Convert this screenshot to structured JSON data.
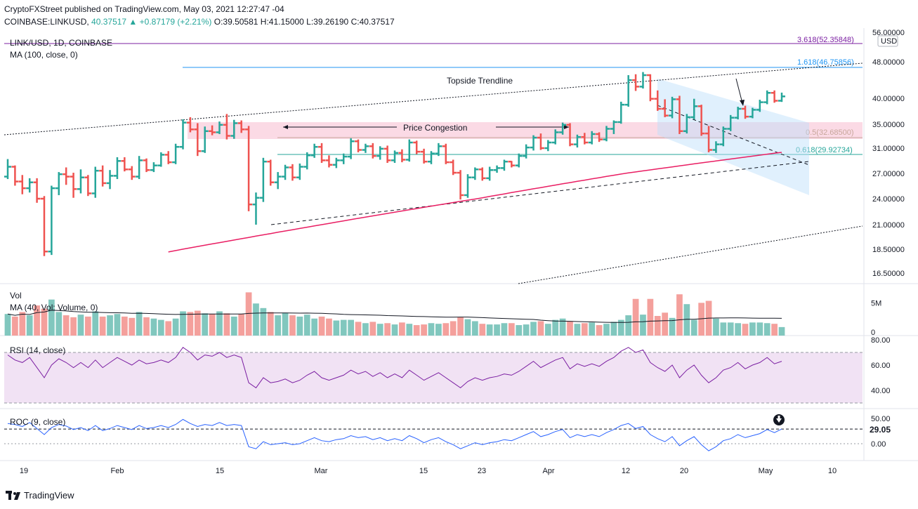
{
  "header": {
    "line1": "CryptoFXStreet published on TradingView.com, May 03, 2021 12:27:47 -04",
    "symbol": "COINBASE:LINKUSD,",
    "change": "40.37517 ▲ +0.87179 (+2.21%)",
    "ohlc": "O:39.50581 H:41.15000 L:39.26190 C:40.37517"
  },
  "pane_labels": {
    "pair": "LINK/USD, 1D, COINBASE",
    "ma": "MA (100, close, 0)",
    "vol": "Vol",
    "vol_ma": "MA (40, Vol: Volume, 0)",
    "rsi": "RSI (14, close)",
    "roc": "ROC (9, close)",
    "currency": "USD"
  },
  "brand": "TradingView",
  "colors": {
    "up": "#26a69a",
    "down": "#ef5350",
    "ma": "#e91e63",
    "rsi": "#7b1fa2",
    "roc": "#2962ff",
    "fib_top": "#7b1fa2",
    "fib_blue": "#2196f3"
  },
  "chart_data": {
    "type": "candlestick",
    "price_axis_ticks": [
      "56.00000",
      "48.00000",
      "40.00000",
      "35.00000",
      "31.00000",
      "27.00000",
      "24.00000",
      "21.00000",
      "18.50000",
      "16.50000"
    ],
    "x_ticks": [
      "19",
      "Feb",
      "15",
      "Mar",
      "15",
      "23",
      "Apr",
      "12",
      "20",
      "May",
      "10"
    ],
    "annotations": {
      "topside": "Topside Trendline",
      "congestion": "Price Congestion",
      "fib_3618": "3.618(52.35848)",
      "fib_1618": "1.618(46.75856)",
      "fib_05": "0.5(32.68500)",
      "fib_0618": "0.618(29.92734)"
    },
    "volume_axis": [
      "5M",
      "0"
    ],
    "rsi_axis": [
      "80.00",
      "60.00",
      "40.00"
    ],
    "roc_axis": [
      "50.00",
      "0.00"
    ],
    "roc_last": "29.05",
    "candles": [
      [
        26.6,
        29.2,
        26.3,
        28.0
      ],
      [
        28.0,
        28.2,
        25.5,
        26.0
      ],
      [
        26.0,
        26.8,
        24.5,
        25.2
      ],
      [
        25.2,
        26.4,
        24.7,
        25.9
      ],
      [
        25.9,
        26.4,
        23.5,
        24.0
      ],
      [
        24.0,
        24.3,
        17.9,
        18.3
      ],
      [
        18.3,
        25.5,
        18.0,
        25.2
      ],
      [
        25.2,
        27.2,
        24.4,
        26.9
      ],
      [
        26.9,
        27.9,
        25.6,
        26.6
      ],
      [
        26.6,
        27.1,
        24.1,
        25.1
      ],
      [
        25.1,
        27.6,
        24.6,
        26.5
      ],
      [
        26.5,
        26.8,
        24.3,
        24.6
      ],
      [
        24.6,
        28.0,
        24.1,
        27.4
      ],
      [
        27.4,
        28.2,
        25.4,
        25.8
      ],
      [
        25.8,
        27.5,
        25.1,
        26.7
      ],
      [
        26.7,
        29.5,
        26.3,
        28.9
      ],
      [
        28.9,
        29.5,
        27.3,
        27.6
      ],
      [
        27.6,
        28.1,
        26.2,
        26.6
      ],
      [
        26.6,
        29.7,
        26.3,
        29.0
      ],
      [
        29.0,
        29.3,
        27.2,
        27.5
      ],
      [
        27.5,
        28.7,
        27.2,
        28.2
      ],
      [
        28.2,
        30.3,
        28.0,
        29.9
      ],
      [
        29.9,
        30.5,
        28.4,
        28.7
      ],
      [
        28.7,
        31.7,
        28.4,
        31.2
      ],
      [
        31.2,
        35.9,
        30.8,
        35.3
      ],
      [
        35.3,
        36.3,
        33.6,
        34.1
      ],
      [
        34.1,
        35.2,
        29.7,
        30.5
      ],
      [
        30.5,
        34.6,
        30.2,
        33.8
      ],
      [
        33.8,
        34.8,
        33.1,
        33.6
      ],
      [
        33.6,
        35.5,
        33.3,
        34.9
      ],
      [
        34.9,
        36.9,
        32.4,
        33.0
      ],
      [
        33.0,
        35.8,
        32.5,
        35.2
      ],
      [
        35.2,
        35.7,
        33.5,
        34.1
      ],
      [
        34.1,
        34.7,
        22.5,
        23.3
      ],
      [
        23.3,
        24.7,
        21.0,
        24.1
      ],
      [
        24.1,
        29.4,
        23.6,
        28.8
      ],
      [
        28.8,
        29.1,
        25.5,
        25.9
      ],
      [
        25.9,
        27.2,
        25.1,
        26.6
      ],
      [
        26.6,
        28.3,
        26.2,
        27.9
      ],
      [
        27.9,
        28.4,
        26.1,
        26.5
      ],
      [
        26.5,
        28.5,
        26.2,
        28.0
      ],
      [
        28.0,
        30.3,
        27.6,
        29.8
      ],
      [
        29.8,
        31.7,
        29.4,
        31.2
      ],
      [
        31.2,
        31.8,
        28.6,
        29.0
      ],
      [
        29.0,
        29.8,
        27.9,
        28.3
      ],
      [
        28.3,
        29.4,
        27.8,
        29.0
      ],
      [
        29.0,
        30.1,
        28.4,
        29.6
      ],
      [
        29.6,
        32.6,
        29.2,
        32.1
      ],
      [
        32.1,
        32.4,
        30.3,
        30.7
      ],
      [
        30.7,
        31.7,
        30.2,
        31.3
      ],
      [
        31.3,
        31.8,
        29.3,
        29.7
      ],
      [
        29.7,
        31.3,
        29.1,
        30.9
      ],
      [
        30.9,
        31.4,
        28.6,
        29.0
      ],
      [
        29.0,
        30.6,
        28.6,
        30.2
      ],
      [
        30.2,
        30.8,
        28.7,
        29.1
      ],
      [
        29.1,
        32.4,
        28.8,
        31.9
      ],
      [
        31.9,
        32.2,
        30.0,
        30.4
      ],
      [
        30.4,
        30.9,
        28.5,
        28.8
      ],
      [
        28.8,
        30.5,
        28.4,
        30.1
      ],
      [
        30.1,
        31.8,
        29.7,
        31.3
      ],
      [
        31.3,
        31.7,
        28.4,
        28.7
      ],
      [
        28.7,
        29.1,
        26.8,
        27.1
      ],
      [
        27.1,
        27.5,
        23.9,
        24.4
      ],
      [
        24.4,
        26.9,
        24.1,
        26.5
      ],
      [
        26.5,
        27.9,
        26.2,
        27.6
      ],
      [
        27.6,
        27.9,
        26.1,
        26.4
      ],
      [
        26.4,
        28.0,
        26.1,
        27.5
      ],
      [
        27.5,
        28.2,
        27.1,
        27.8
      ],
      [
        27.8,
        29.1,
        27.4,
        28.8
      ],
      [
        28.8,
        28.9,
        27.9,
        28.2
      ],
      [
        28.2,
        30.1,
        27.9,
        29.7
      ],
      [
        29.7,
        31.6,
        29.3,
        31.1
      ],
      [
        31.1,
        33.1,
        30.6,
        32.7
      ],
      [
        32.7,
        33.4,
        30.7,
        31.0
      ],
      [
        31.0,
        32.3,
        30.5,
        31.9
      ],
      [
        31.9,
        34.1,
        31.6,
        33.6
      ],
      [
        33.6,
        35.3,
        33.2,
        34.9
      ],
      [
        34.9,
        35.2,
        31.3,
        31.6
      ],
      [
        31.6,
        33.2,
        31.1,
        32.8
      ],
      [
        32.8,
        33.5,
        31.6,
        31.9
      ],
      [
        31.9,
        33.8,
        31.6,
        33.3
      ],
      [
        33.3,
        33.6,
        32.0,
        32.4
      ],
      [
        32.4,
        34.7,
        32.1,
        34.2
      ],
      [
        34.2,
        35.7,
        33.3,
        35.4
      ],
      [
        35.4,
        39.3,
        35.1,
        38.7
      ],
      [
        38.7,
        44.9,
        38.3,
        43.8
      ],
      [
        43.8,
        45.1,
        41.5,
        42.4
      ],
      [
        42.4,
        45.6,
        42.0,
        44.9
      ],
      [
        44.9,
        45.1,
        39.4,
        39.9
      ],
      [
        39.9,
        41.6,
        37.5,
        37.9
      ],
      [
        37.9,
        39.8,
        36.3,
        36.6
      ],
      [
        36.6,
        40.3,
        36.1,
        39.8
      ],
      [
        39.8,
        40.5,
        33.3,
        33.8
      ],
      [
        33.8,
        36.9,
        33.4,
        36.3
      ],
      [
        36.3,
        39.9,
        35.9,
        38.4
      ],
      [
        38.4,
        38.7,
        33.0,
        33.4
      ],
      [
        33.4,
        34.7,
        30.3,
        30.7
      ],
      [
        30.7,
        32.1,
        30.2,
        31.6
      ],
      [
        31.6,
        34.6,
        31.3,
        34.2
      ],
      [
        34.2,
        36.7,
        33.8,
        36.2
      ],
      [
        36.2,
        38.3,
        35.9,
        37.9
      ],
      [
        37.9,
        38.5,
        36.0,
        36.4
      ],
      [
        36.4,
        38.1,
        36.1,
        37.7
      ],
      [
        37.7,
        39.7,
        37.3,
        39.2
      ],
      [
        39.2,
        41.6,
        38.8,
        41.1
      ],
      [
        41.1,
        41.6,
        39.1,
        39.5
      ],
      [
        39.5,
        41.15,
        39.26,
        40.38
      ]
    ],
    "volume": [
      3.3,
      2.9,
      3.6,
      3.1,
      4.6,
      4.1,
      5.5,
      3.6,
      3.1,
      2.8,
      3.2,
      2.9,
      3.7,
      2.9,
      3.1,
      3.3,
      2.9,
      2.7,
      3.6,
      2.8,
      2.6,
      2.4,
      2.2,
      2.6,
      3.7,
      3.6,
      3.8,
      3.4,
      3.3,
      3.7,
      3.4,
      2.9,
      3.3,
      6.6,
      4.9,
      4.2,
      3.6,
      3.1,
      3.5,
      3.1,
      2.9,
      3.2,
      2.6,
      2.9,
      2.6,
      2.3,
      2.4,
      2.4,
      2.1,
      1.9,
      2.1,
      1.8,
      1.9,
      1.7,
      2.0,
      1.8,
      1.6,
      1.7,
      1.9,
      1.8,
      1.9,
      2.2,
      2.8,
      2.5,
      2.2,
      1.8,
      1.7,
      1.7,
      1.9,
      1.9,
      1.6,
      1.7,
      2.1,
      2.2,
      1.8,
      2.4,
      2.6,
      2.2,
      1.8,
      1.9,
      2.0,
      1.6,
      1.8,
      2.1,
      2.4,
      3.1,
      5.6,
      3.2,
      5.6,
      3.0,
      3.5,
      2.7,
      6.3,
      4.8,
      2.4,
      5.0,
      5.3,
      2.6,
      2.0,
      2.0,
      1.9,
      1.8,
      2.0,
      2.0,
      1.9,
      1.8,
      1.3
    ],
    "rsi": [
      68,
      64,
      62,
      66,
      58,
      50,
      60,
      65,
      62,
      58,
      62,
      58,
      64,
      58,
      62,
      66,
      63,
      60,
      64,
      61,
      62,
      64,
      62,
      66,
      74,
      70,
      64,
      68,
      67,
      70,
      66,
      68,
      66,
      46,
      42,
      50,
      46,
      47,
      49,
      46,
      48,
      52,
      55,
      50,
      48,
      50,
      52,
      56,
      53,
      55,
      51,
      54,
      50,
      53,
      50,
      56,
      52,
      48,
      51,
      54,
      50,
      46,
      42,
      47,
      50,
      48,
      50,
      51,
      53,
      52,
      55,
      59,
      63,
      58,
      61,
      64,
      66,
      57,
      61,
      59,
      61,
      59,
      63,
      66,
      71,
      74,
      70,
      72,
      62,
      58,
      55,
      60,
      50,
      56,
      60,
      52,
      46,
      50,
      56,
      58,
      62,
      57,
      60,
      62,
      66,
      61,
      63
    ],
    "roc": [
      40,
      38,
      34,
      42,
      30,
      18,
      32,
      38,
      35,
      28,
      32,
      26,
      36,
      26,
      30,
      36,
      32,
      28,
      36,
      30,
      32,
      36,
      32,
      38,
      48,
      40,
      34,
      38,
      36,
      42,
      36,
      38,
      36,
      -6,
      -10,
      4,
      -2,
      0,
      2,
      -2,
      0,
      6,
      12,
      6,
      4,
      8,
      10,
      16,
      12,
      14,
      8,
      12,
      6,
      10,
      6,
      16,
      10,
      2,
      8,
      12,
      4,
      -2,
      -10,
      -4,
      2,
      -2,
      2,
      4,
      8,
      6,
      12,
      18,
      24,
      14,
      18,
      24,
      28,
      12,
      18,
      14,
      18,
      14,
      22,
      28,
      36,
      40,
      30,
      34,
      18,
      10,
      4,
      14,
      -4,
      6,
      14,
      -2,
      -14,
      -6,
      6,
      10,
      18,
      12,
      16,
      20,
      28,
      22,
      29
    ]
  }
}
